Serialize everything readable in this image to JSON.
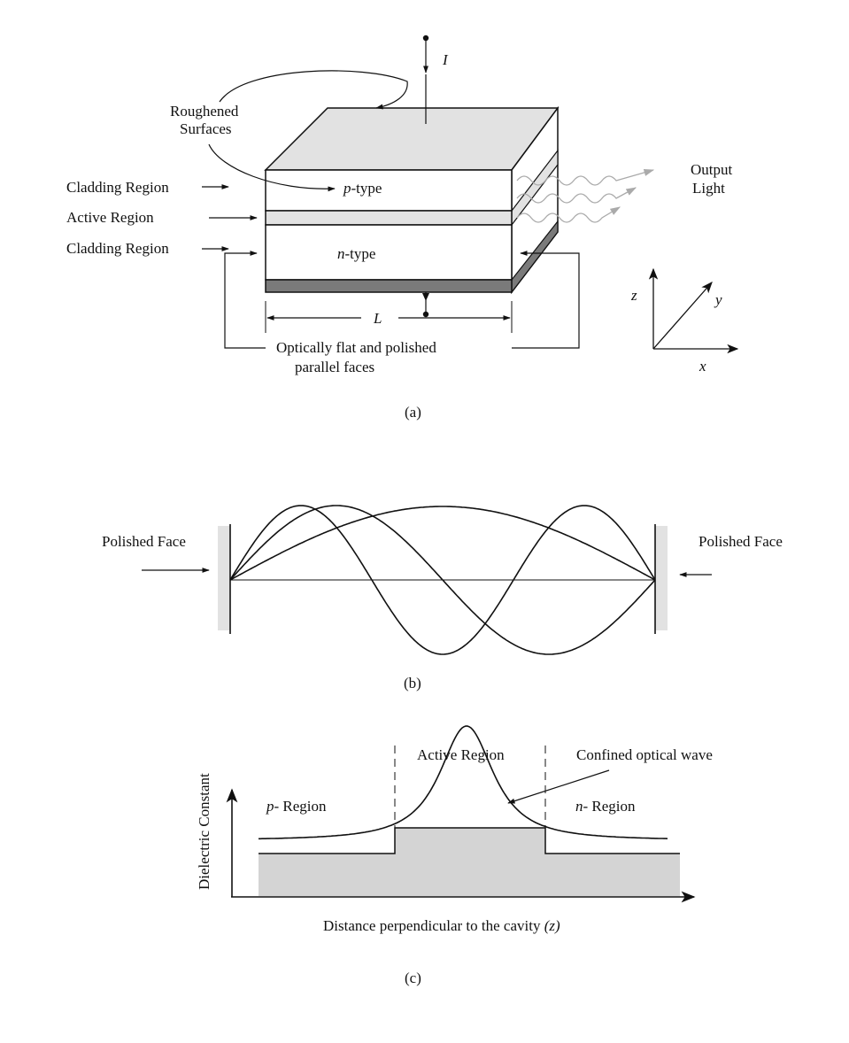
{
  "panel_a": {
    "current_label": "I",
    "roughened_label_1": "Roughened",
    "roughened_label_2": "Surfaces",
    "cladding_top_label": "Cladding Region",
    "active_label": "Active Region",
    "cladding_bottom_label": "Cladding Region",
    "p_type_italic": "p",
    "p_type_suffix": "-type",
    "n_type_italic": "n",
    "n_type_suffix": "-type",
    "output_label_1": "Output",
    "output_label_2": "Light",
    "length_label": "L",
    "faces_label_1": "Optically flat and polished",
    "faces_label_2": "parallel faces",
    "axis_z": "z",
    "axis_y": "y",
    "axis_x": "x",
    "caption": "(a)"
  },
  "panel_b": {
    "left_face_label": "Polished Face",
    "right_face_label": "Polished Face",
    "caption": "(b)"
  },
  "panel_c": {
    "ylabel": "Dielectric Constant",
    "xlabel_main": "Distance perpendicular to the cavity ",
    "xlabel_var": "(z)",
    "active_label": "Active Region",
    "wave_label": "Confined optical wave",
    "p_region_italic": "p",
    "p_region_suffix": "- Region",
    "n_region_italic": "n",
    "n_region_suffix": "- Region",
    "caption": "(c)"
  },
  "colors": {
    "ink": "#111111",
    "light_fill": "#e2e2e2",
    "band_fill": "#d4d4d4",
    "substrate": "#7a7a7a",
    "wave_gray": "#9a9a9a"
  }
}
